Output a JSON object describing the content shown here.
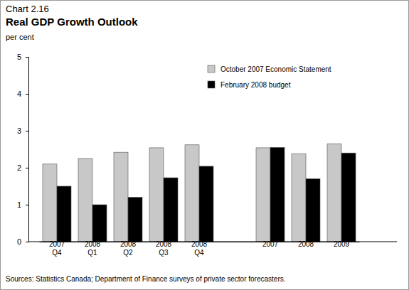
{
  "chart_data": {
    "type": "bar",
    "chart_label": "Chart 2.16",
    "title": "Real GDP Growth Outlook",
    "y_label": "per cent",
    "source": "Sources: Statistics Canada; Department of Finance surveys of private sector forecasters.",
    "categories": [
      "2007 Q4",
      "2008 Q1",
      "2008 Q2",
      "2008 Q3",
      "2008 Q4",
      null,
      "2007",
      "2008",
      "2009"
    ],
    "series": [
      {
        "name": "October 2007 Economic Statement",
        "color": "#c8c8c8",
        "values": [
          2.1,
          2.25,
          2.42,
          2.54,
          2.62,
          null,
          2.54,
          2.38,
          2.65
        ]
      },
      {
        "name": "February 2008 budget",
        "color": "#000000",
        "values": [
          1.5,
          1.0,
          1.2,
          1.73,
          2.04,
          null,
          2.55,
          1.7,
          2.4
        ]
      }
    ],
    "ylim": [
      0,
      5
    ],
    "yticks": [
      0,
      1,
      2,
      3,
      4,
      5
    ],
    "grid": false,
    "legend": "top-right"
  }
}
